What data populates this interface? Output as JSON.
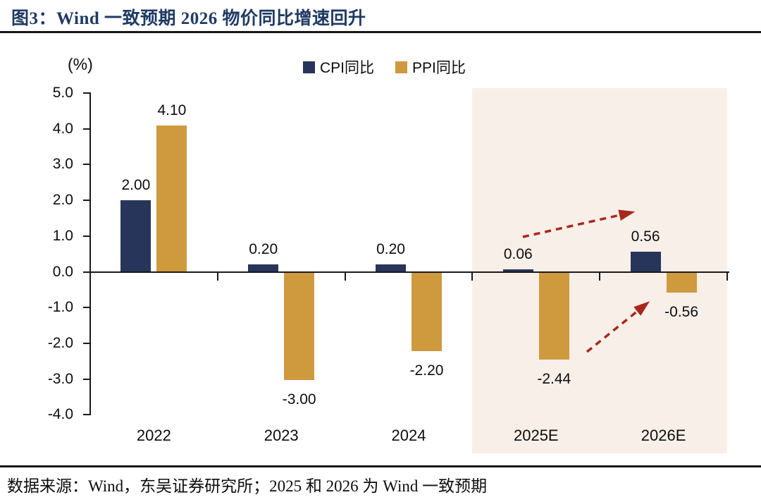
{
  "header": {
    "title": "图3：Wind 一致预期 2026 物价同比增速回升",
    "title_color": "#1F3A64"
  },
  "footer": {
    "source_note": "数据来源：Wind，东吴证券研究所；2025 和 2026 为 Wind 一致预期"
  },
  "chart_data": {
    "type": "bar",
    "title": "图3：Wind 一致预期 2026 物价同比增速回升",
    "unit_label": "(%)",
    "categories": [
      "2022",
      "2023",
      "2024",
      "2025E",
      "2026E"
    ],
    "series": [
      {
        "name": "CPI同比",
        "color": "#28355A",
        "values": [
          2.0,
          0.2,
          0.2,
          0.06,
          0.56
        ],
        "labels": [
          "2.00",
          "0.20",
          "0.20",
          "0.06",
          "0.56"
        ]
      },
      {
        "name": "PPI同比",
        "color": "#CF993E",
        "values": [
          4.1,
          -3.0,
          -2.2,
          -2.44,
          -0.56
        ],
        "labels": [
          "4.10",
          "-3.00",
          "-2.20",
          "-2.44",
          "-0.56"
        ]
      }
    ],
    "ylim": [
      -4.0,
      5.0
    ],
    "ytick_labels": [
      "5.0",
      "4.0",
      "3.0",
      "2.0",
      "1.0",
      "0.0",
      "-1.0",
      "-2.0",
      "-3.0",
      "-4.0"
    ],
    "grid": false,
    "legend_position": "top-center",
    "forecast_region": {
      "start_category": "2025E",
      "end_category": "2026E",
      "fill": "#F8EFE9"
    },
    "annotations": [
      {
        "type": "dashed-arrow",
        "series": "CPI同比",
        "from_category": "2025E",
        "to_category": "2026E",
        "color": "#A8281E"
      },
      {
        "type": "dashed-arrow",
        "series": "PPI同比",
        "from_category": "2025E",
        "to_category": "2026E",
        "color": "#A8281E"
      }
    ]
  }
}
